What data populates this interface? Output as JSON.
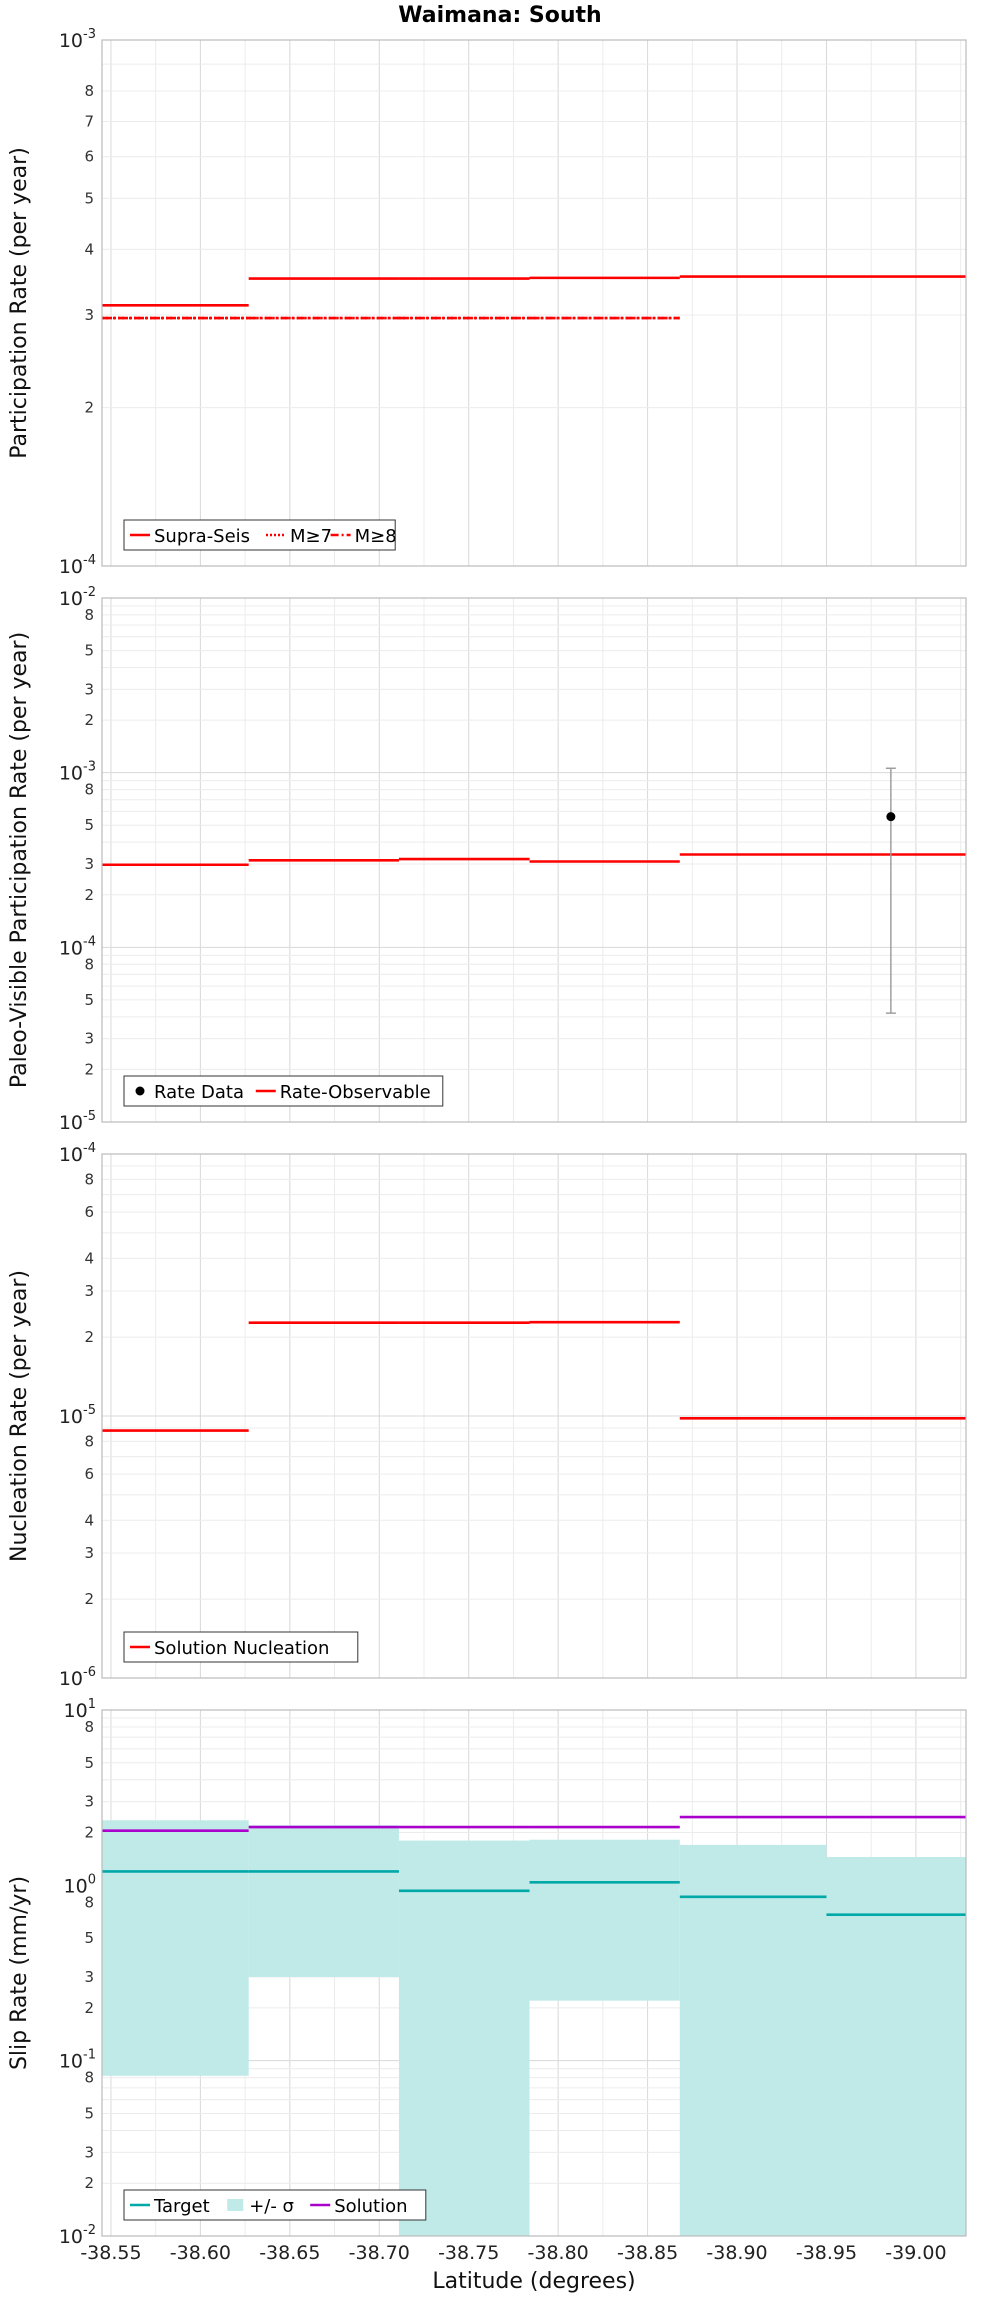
{
  "title": "Waimana: South",
  "chart_data": [
    {
      "type": "line",
      "ylabel": "Participation Rate (per year)",
      "yscale": "log",
      "ylim": [
        0.0001,
        0.001
      ],
      "xlim": [
        -38.545,
        -39.028
      ],
      "series": [
        {
          "name": "Supra-Seis",
          "style": "solid",
          "color": "#ff0000",
          "steps": [
            [
              -38.545,
              -38.627,
              0.000313
            ],
            [
              -38.627,
              -38.711,
              0.000352
            ],
            [
              -38.711,
              -38.784,
              0.000352
            ],
            [
              -38.784,
              -38.868,
              0.000353
            ],
            [
              -38.868,
              -38.95,
              0.000355
            ],
            [
              -38.95,
              -39.028,
              0.000355
            ]
          ]
        },
        {
          "name": "M≥7",
          "style": "dotted",
          "color": "#ff0000",
          "steps": [
            [
              -38.545,
              -38.627,
              0.000296
            ],
            [
              -38.627,
              -38.711,
              0.000296
            ],
            [
              -38.711,
              -38.784,
              0.000296
            ],
            [
              -38.784,
              -38.868,
              0.000296
            ]
          ]
        },
        {
          "name": "M≥8",
          "style": "dashdot",
          "color": "#ff0000",
          "steps": [
            [
              -38.545,
              -38.627,
              0.000296
            ],
            [
              -38.627,
              -38.711,
              0.000296
            ],
            [
              -38.711,
              -38.784,
              0.000296
            ],
            [
              -38.784,
              -38.868,
              0.000296
            ]
          ]
        }
      ],
      "legend_position": "bottom-left"
    },
    {
      "type": "line",
      "ylabel": "Paleo-Visible Participation Rate (per year)",
      "yscale": "log",
      "ylim": [
        1e-05,
        0.01
      ],
      "xlim": [
        -38.545,
        -39.028
      ],
      "series": [
        {
          "name": "Rate Data",
          "style": "point",
          "color": "#000000",
          "points": [
            {
              "x": -38.986,
              "y": 0.00056,
              "lo": 4.2e-05,
              "hi": 0.00106
            }
          ]
        },
        {
          "name": "Rate-Observable",
          "style": "solid",
          "color": "#ff0000",
          "steps": [
            [
              -38.545,
              -38.627,
              0.000297
            ],
            [
              -38.627,
              -38.711,
              0.000315
            ],
            [
              -38.711,
              -38.784,
              0.00032
            ],
            [
              -38.784,
              -38.868,
              0.00031
            ],
            [
              -38.868,
              -38.95,
              0.00034
            ],
            [
              -38.95,
              -39.028,
              0.00034
            ]
          ]
        }
      ],
      "legend_position": "bottom-left"
    },
    {
      "type": "line",
      "ylabel": "Nucleation Rate (per year)",
      "yscale": "log",
      "ylim": [
        1e-06,
        0.0001
      ],
      "xlim": [
        -38.545,
        -39.028
      ],
      "series": [
        {
          "name": "Solution Nucleation",
          "style": "solid",
          "color": "#ff0000",
          "steps": [
            [
              -38.545,
              -38.627,
              8.8e-06
            ],
            [
              -38.627,
              -38.711,
              2.27e-05
            ],
            [
              -38.711,
              -38.784,
              2.27e-05
            ],
            [
              -38.784,
              -38.868,
              2.28e-05
            ],
            [
              -38.868,
              -38.95,
              9.8e-06
            ],
            [
              -38.95,
              -39.028,
              9.8e-06
            ]
          ]
        }
      ],
      "legend_position": "bottom-left"
    },
    {
      "type": "line",
      "ylabel": "Slip Rate (mm/yr)",
      "xlabel": "Latitude (degrees)",
      "yscale": "log",
      "ylim": [
        0.01,
        10
      ],
      "xlim": [
        -38.545,
        -39.028
      ],
      "xticks": [
        -38.55,
        -38.6,
        -38.65,
        -38.7,
        -38.75,
        -38.8,
        -38.85,
        -38.9,
        -38.95,
        -39.0
      ],
      "xtick_labels": [
        "-38.55",
        "-38.60",
        "-38.65",
        "-38.70",
        "-38.75",
        "-38.80",
        "-38.85",
        "-38.90",
        "-38.95",
        "-39.00"
      ],
      "series": [
        {
          "name": "Target",
          "style": "solid",
          "color": "#00a8a8",
          "steps": [
            [
              -38.545,
              -38.627,
              1.2
            ],
            [
              -38.627,
              -38.711,
              1.2
            ],
            [
              -38.711,
              -38.784,
              0.93
            ],
            [
              -38.784,
              -38.868,
              1.04
            ],
            [
              -38.868,
              -38.95,
              0.86
            ],
            [
              -38.95,
              -39.028,
              0.68
            ]
          ]
        },
        {
          "name": "+/- σ",
          "style": "band",
          "color": "#bfeae8",
          "bands": [
            [
              -38.545,
              -38.627,
              0.082,
              2.35
            ],
            [
              -38.627,
              -38.711,
              0.3,
              2.2
            ],
            [
              -38.711,
              -38.784,
              0.01,
              1.8
            ],
            [
              -38.784,
              -38.868,
              0.22,
              1.82
            ],
            [
              -38.868,
              -38.95,
              0.01,
              1.7
            ],
            [
              -38.95,
              -39.028,
              0.01,
              1.45
            ]
          ]
        },
        {
          "name": "Solution",
          "style": "solid",
          "color": "#aa00cc",
          "steps": [
            [
              -38.545,
              -38.627,
              2.05
            ],
            [
              -38.627,
              -38.711,
              2.15
            ],
            [
              -38.711,
              -38.784,
              2.15
            ],
            [
              -38.784,
              -38.868,
              2.15
            ],
            [
              -38.868,
              -38.95,
              2.45
            ],
            [
              -38.95,
              -39.028,
              2.45
            ]
          ]
        }
      ],
      "legend_position": "bottom-left"
    }
  ]
}
